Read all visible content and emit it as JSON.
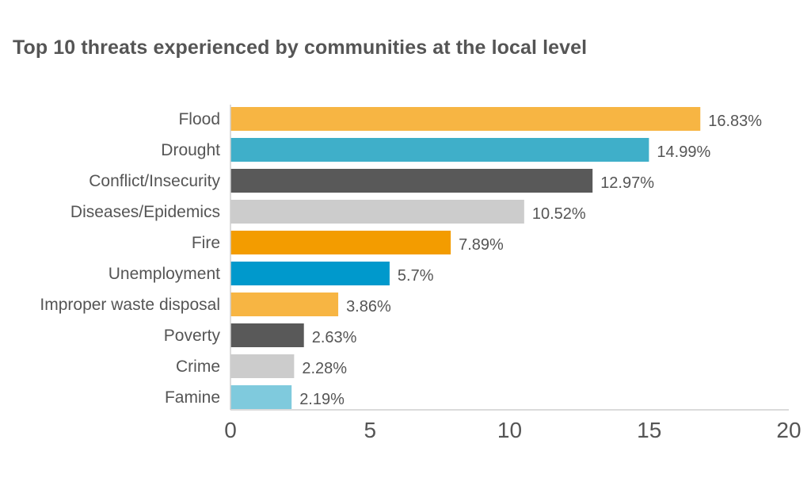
{
  "chart_data": {
    "type": "bar",
    "orientation": "horizontal",
    "title": "Top 10 threats experienced by communities at the local level",
    "categories": [
      "Flood",
      "Drought",
      "Conflict/Insecurity",
      "Diseases/Epidemics",
      "Fire",
      "Unemployment",
      "Improper waste disposal",
      "Poverty",
      "Crime",
      "Famine"
    ],
    "values": [
      16.83,
      14.99,
      12.97,
      10.52,
      7.89,
      5.7,
      3.86,
      2.63,
      2.28,
      2.19
    ],
    "value_labels": [
      "16.83%",
      "14.99%",
      "12.97%",
      "10.52%",
      "7.89%",
      "5.7%",
      "3.86%",
      "2.63%",
      "2.28%",
      "2.19%"
    ],
    "colors": [
      "#F7B543",
      "#3FAFC9",
      "#595959",
      "#CCCCCC",
      "#F39C00",
      "#0099CC",
      "#F7B543",
      "#595959",
      "#CCCCCC",
      "#7FCADD"
    ],
    "xlim": [
      0,
      20
    ],
    "xticks": [
      0,
      5,
      10,
      15,
      20
    ],
    "xtick_labels": [
      "0",
      "5",
      "10",
      "15",
      "20"
    ],
    "grid": false,
    "legend": "none"
  }
}
